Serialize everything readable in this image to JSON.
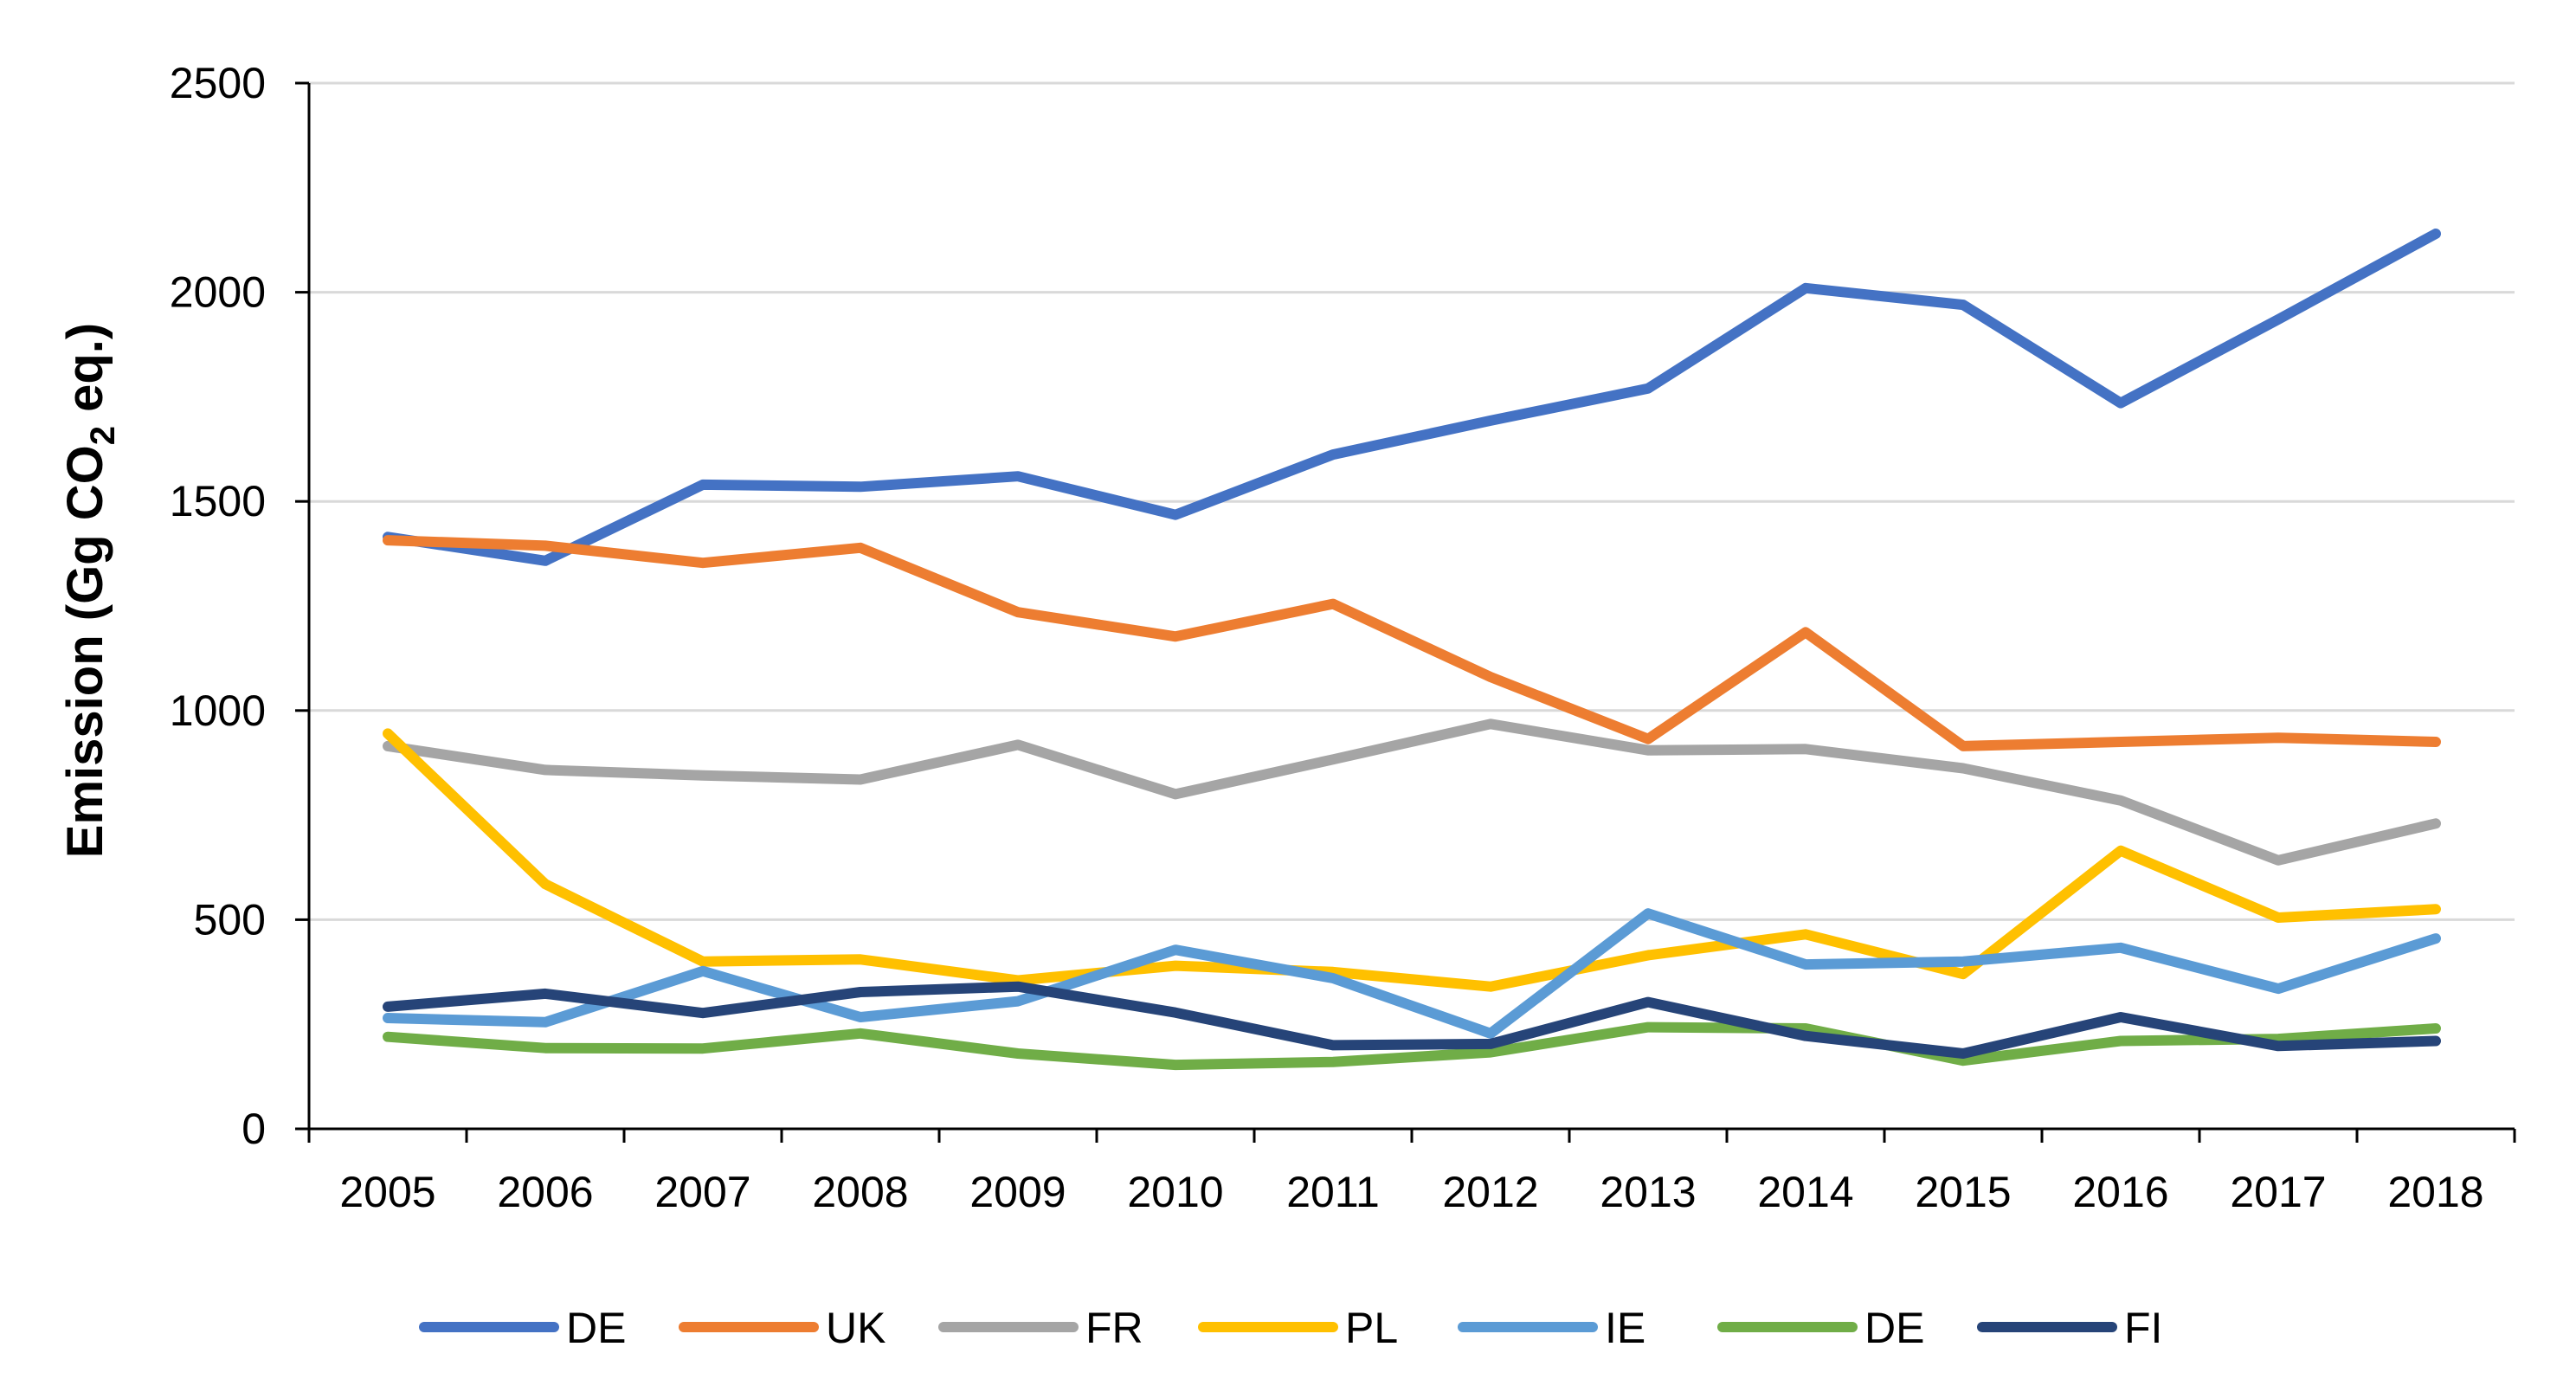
{
  "chart_data": {
    "type": "line",
    "title": "",
    "xlabel": "",
    "ylabel": "Emission (Gg CO",
    "ylabel_subscript": "2",
    "ylabel_suffix": " eq.)",
    "ylim": [
      0,
      2500
    ],
    "y_ticks": [
      "0",
      "500",
      "1000",
      "1500",
      "2000",
      "2500"
    ],
    "grid": true,
    "legend": "bottom",
    "categories": [
      "2005",
      "2006",
      "2007",
      "2008",
      "2009",
      "2010",
      "2011",
      "2012",
      "2013",
      "2014",
      "2015",
      "2016",
      "2017",
      "2018"
    ],
    "series": [
      {
        "name": "DE",
        "color": "#4472C4",
        "values": [
          1415,
          1358,
          1540,
          1535,
          1560,
          1468,
          1612,
          1693,
          1770,
          2010,
          1970,
          1735,
          1935,
          2140
        ]
      },
      {
        "name": "UK",
        "color": "#ED7D31",
        "values": [
          1407,
          1394,
          1353,
          1389,
          1235,
          1177,
          1255,
          1080,
          932,
          1187,
          915,
          925,
          935,
          925
        ]
      },
      {
        "name": "FR",
        "color": "#A5A5A5",
        "values": [
          915,
          858,
          845,
          835,
          918,
          800,
          883,
          968,
          905,
          908,
          862,
          785,
          642,
          730
        ]
      },
      {
        "name": "PL",
        "color": "#FFC000",
        "values": [
          945,
          585,
          400,
          405,
          355,
          390,
          375,
          340,
          415,
          465,
          370,
          665,
          505,
          525
        ]
      },
      {
        "name": "IE",
        "color": "#5B9BD5",
        "values": [
          265,
          255,
          377,
          267,
          305,
          428,
          360,
          228,
          515,
          393,
          400,
          433,
          335,
          455
        ]
      },
      {
        "name": "DE",
        "color": "#70AD47",
        "values": [
          220,
          193,
          192,
          228,
          180,
          153,
          160,
          183,
          243,
          240,
          163,
          210,
          215,
          240
        ]
      },
      {
        "name": "FI",
        "color": "#264478",
        "values": [
          292,
          323,
          277,
          327,
          340,
          278,
          200,
          203,
          303,
          222,
          180,
          267,
          198,
          210
        ]
      }
    ]
  }
}
